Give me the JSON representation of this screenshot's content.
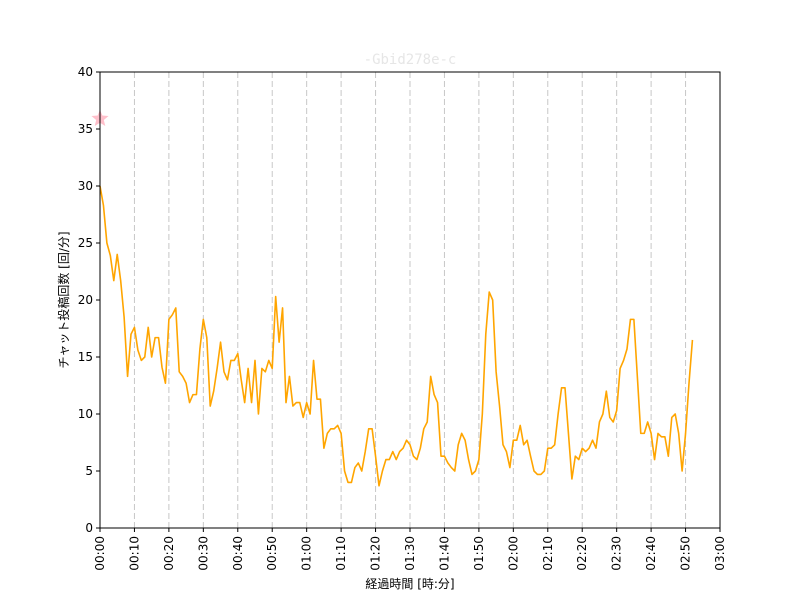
{
  "chart_data": {
    "type": "line",
    "title": "-Gbid278e-c",
    "xlabel": "経過時間 [時:分]",
    "ylabel": "チャット投稿回数 [回/分]",
    "xlim": [
      0,
      180
    ],
    "ylim": [
      0,
      40
    ],
    "yticks": [
      0,
      5,
      10,
      15,
      20,
      25,
      30,
      35,
      40
    ],
    "xticks": [
      0,
      10,
      20,
      30,
      40,
      50,
      60,
      70,
      80,
      90,
      100,
      110,
      120,
      130,
      140,
      150,
      160,
      170,
      180
    ],
    "xtick_labels": [
      "00:00",
      "00:10",
      "00:20",
      "00:30",
      "00:40",
      "00:50",
      "01:00",
      "01:10",
      "01:20",
      "01:30",
      "01:40",
      "01:50",
      "02:00",
      "02:10",
      "02:20",
      "02:30",
      "02:40",
      "02:50",
      "03:00"
    ],
    "vertical_grid": true,
    "line_color": "#ffa500",
    "marker": {
      "x": 0,
      "y": 35.9,
      "color": "#ffc0cb",
      "shape": "star"
    },
    "series": [
      {
        "x": [
          0,
          1,
          2,
          3,
          4,
          5,
          6,
          7,
          8,
          9,
          10,
          11,
          12,
          13,
          14,
          15,
          16,
          17,
          18,
          19,
          20,
          21,
          22,
          23,
          24,
          25,
          26,
          27,
          28,
          29,
          30,
          31,
          32,
          33,
          34,
          35,
          36,
          37,
          38,
          39,
          40,
          41,
          42,
          43,
          44,
          45,
          46,
          47,
          48,
          49,
          50,
          51,
          52,
          53,
          54,
          55,
          56,
          57,
          58,
          59,
          60,
          61,
          62,
          63,
          64,
          65,
          66,
          67,
          68,
          69,
          70,
          71,
          72,
          73,
          74,
          75,
          76,
          77,
          78,
          79,
          80,
          81,
          82,
          83,
          84,
          85,
          86,
          87,
          88,
          89,
          90,
          91,
          92,
          93,
          94,
          95,
          96,
          97,
          98,
          99,
          100,
          101,
          102,
          103,
          104,
          105,
          106,
          107,
          108,
          109,
          110,
          111,
          112,
          113,
          114,
          115,
          116,
          117,
          118,
          119,
          120,
          121,
          122,
          123,
          124,
          125,
          126,
          127,
          128,
          129,
          130,
          131,
          132,
          133,
          134,
          135,
          136,
          137,
          138,
          139,
          140,
          141,
          142,
          143,
          144,
          145,
          146,
          147,
          148,
          149,
          150,
          151,
          152,
          153,
          154,
          155,
          156,
          157,
          158,
          159,
          160,
          161,
          162,
          163,
          164,
          165,
          166,
          167,
          168,
          169,
          170,
          171,
          172
        ],
        "y": [
          30.0,
          28.3,
          25.0,
          23.9,
          21.7,
          24.0,
          21.7,
          18.5,
          13.3,
          17.0,
          17.6,
          15.6,
          14.7,
          15.0,
          17.6,
          15.0,
          16.7,
          16.7,
          14.1,
          12.7,
          18.3,
          18.7,
          19.3,
          13.7,
          13.3,
          12.7,
          11.0,
          11.7,
          11.7,
          15.7,
          18.3,
          16.7,
          10.7,
          12.0,
          14.0,
          16.3,
          13.7,
          13.0,
          14.7,
          14.7,
          15.3,
          13.0,
          11.0,
          14.0,
          11.0,
          14.7,
          10.0,
          14.0,
          13.7,
          14.7,
          14.0,
          20.3,
          16.3,
          19.3,
          11.0,
          13.3,
          10.7,
          11.0,
          11.0,
          9.7,
          11.0,
          10.0,
          14.7,
          11.3,
          11.3,
          7.0,
          8.3,
          8.7,
          8.7,
          9.0,
          8.3,
          5.0,
          4.0,
          4.0,
          5.3,
          5.7,
          5.0,
          6.7,
          8.7,
          8.7,
          6.3,
          3.7,
          5.0,
          6.0,
          6.0,
          6.7,
          6.0,
          6.7,
          7.0,
          7.7,
          7.3,
          6.3,
          6.0,
          7.0,
          8.7,
          9.3,
          13.3,
          11.7,
          11.0,
          6.3,
          6.3,
          5.7,
          5.3,
          5.0,
          7.3,
          8.3,
          7.7,
          6.0,
          4.7,
          5.0,
          6.0,
          10.0,
          17.0,
          20.7,
          20.0,
          13.7,
          10.7,
          7.3,
          6.7,
          5.3,
          7.7,
          7.7,
          9.0,
          7.3,
          7.7,
          6.3,
          5.0,
          4.7,
          4.7,
          5.0,
          7.0,
          7.0,
          7.3,
          10.0,
          12.3,
          12.3,
          8.3,
          4.3,
          6.3,
          6.0,
          7.0,
          6.7,
          7.0,
          7.7,
          7.0,
          9.3,
          10.0,
          12.0,
          9.7,
          9.3,
          10.3,
          14.0,
          14.7,
          15.7,
          18.3,
          18.3,
          13.3,
          8.3,
          8.3,
          9.3,
          8.3,
          6.0,
          8.3,
          8.0,
          8.0,
          6.3,
          9.7,
          10.0,
          8.3,
          5.0,
          8.3,
          12.7,
          16.5
        ]
      }
    ]
  }
}
